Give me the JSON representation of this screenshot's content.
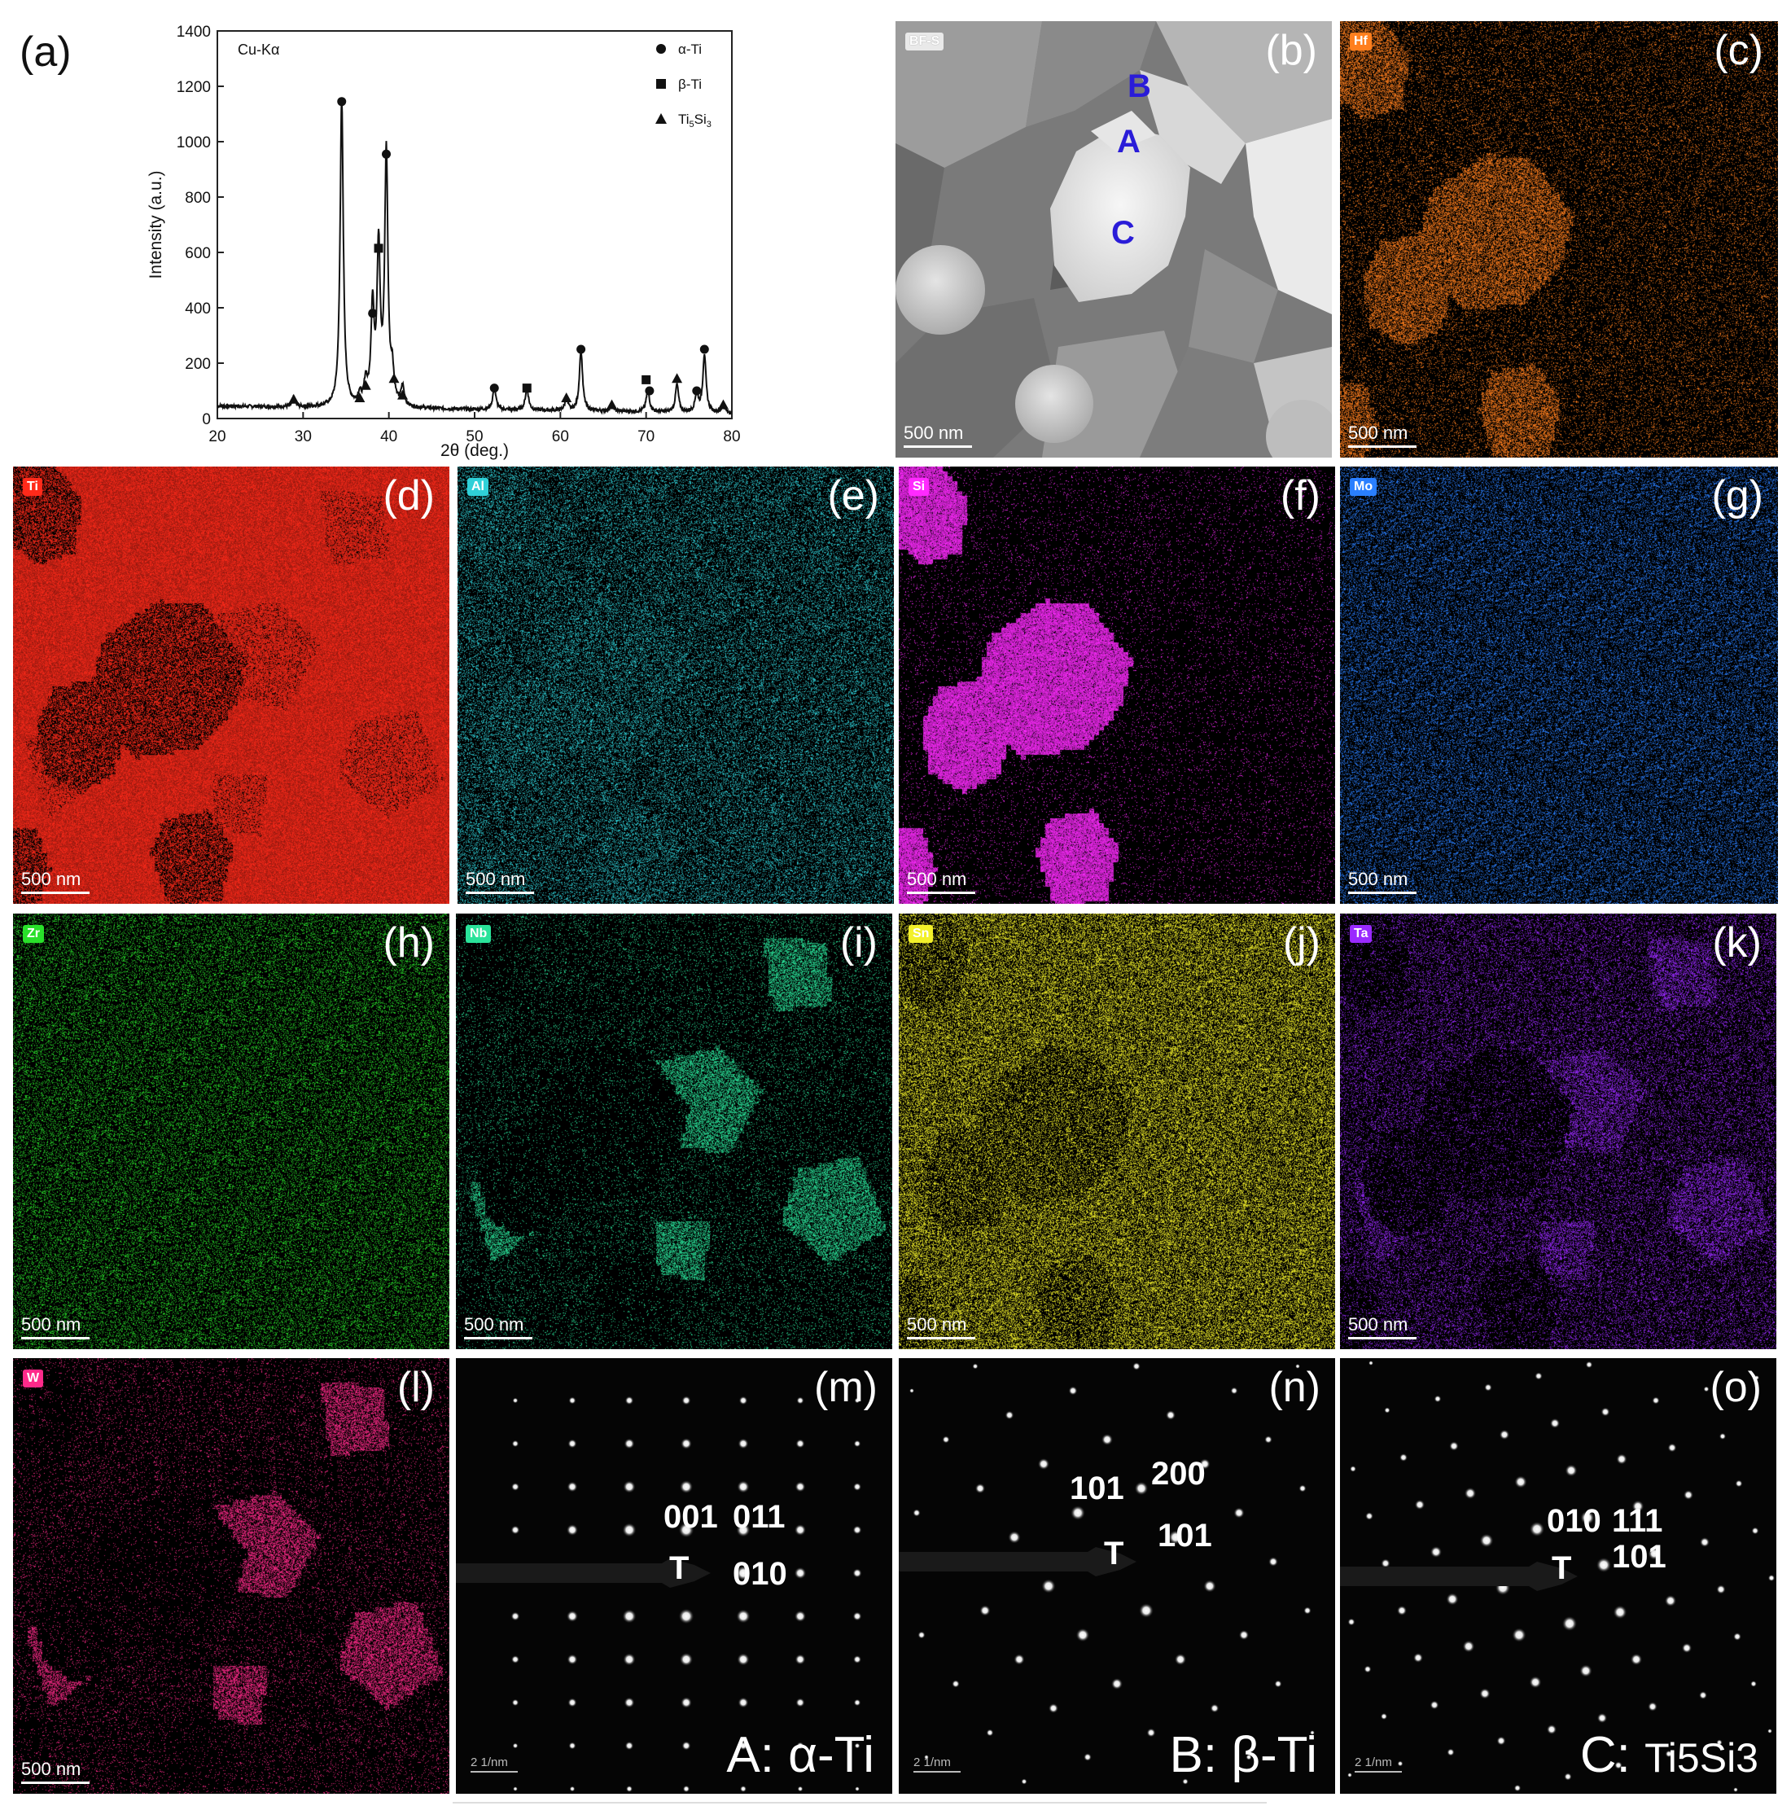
{
  "chart_data": {
    "type": "line",
    "panel_label": "(a)",
    "annotation": "Cu-Kα",
    "xlabel": "2θ (deg.)",
    "ylabel": "Intensity (a.u.)",
    "xlim": [
      20,
      80
    ],
    "ylim": [
      0,
      1400
    ],
    "xticks": [
      "20",
      "30",
      "40",
      "50",
      "60",
      "70",
      "80"
    ],
    "yticks": [
      "0",
      "200",
      "400",
      "600",
      "800",
      "1000",
      "1200",
      "1400"
    ],
    "grid": false,
    "legend_position": "top-right",
    "legend": [
      {
        "marker": "circle",
        "label": "α-Ti"
      },
      {
        "marker": "square",
        "label": "β-Ti"
      },
      {
        "marker": "triangle",
        "label": "Ti5Si3"
      }
    ],
    "peaks": [
      {
        "x": 28.9,
        "y": 28
      },
      {
        "x": 34.5,
        "y": 1120
      },
      {
        "x": 36.6,
        "y": 36
      },
      {
        "x": 37.3,
        "y": 80
      },
      {
        "x": 38.1,
        "y": 350
      },
      {
        "x": 38.8,
        "y": 560
      },
      {
        "x": 39.7,
        "y": 915
      },
      {
        "x": 40.4,
        "y": 110
      },
      {
        "x": 41.6,
        "y": 70
      },
      {
        "x": 52.3,
        "y": 80
      },
      {
        "x": 56.1,
        "y": 80
      },
      {
        "x": 60.7,
        "y": 40
      },
      {
        "x": 62.4,
        "y": 220
      },
      {
        "x": 66.0,
        "y": 28
      },
      {
        "x": 70.2,
        "y": 80
      },
      {
        "x": 73.6,
        "y": 100
      },
      {
        "x": 75.9,
        "y": 70
      },
      {
        "x": 76.8,
        "y": 210
      },
      {
        "x": 79.0,
        "y": 25
      }
    ],
    "markers": [
      {
        "x": 28.9,
        "y": 70,
        "type": "triangle"
      },
      {
        "x": 34.5,
        "y": 1145,
        "type": "circle"
      },
      {
        "x": 36.6,
        "y": 75,
        "type": "triangle"
      },
      {
        "x": 37.3,
        "y": 120,
        "type": "triangle"
      },
      {
        "x": 38.1,
        "y": 380,
        "type": "circle"
      },
      {
        "x": 38.8,
        "y": 615,
        "type": "square"
      },
      {
        "x": 39.7,
        "y": 955,
        "type": "circle"
      },
      {
        "x": 40.6,
        "y": 145,
        "type": "triangle"
      },
      {
        "x": 41.6,
        "y": 85,
        "type": "triangle"
      },
      {
        "x": 52.3,
        "y": 110,
        "type": "circle"
      },
      {
        "x": 56.1,
        "y": 110,
        "type": "square"
      },
      {
        "x": 60.7,
        "y": 75,
        "type": "triangle"
      },
      {
        "x": 62.4,
        "y": 250,
        "type": "circle"
      },
      {
        "x": 66.0,
        "y": 50,
        "type": "triangle"
      },
      {
        "x": 70.0,
        "y": 140,
        "type": "square"
      },
      {
        "x": 70.4,
        "y": 100,
        "type": "circle"
      },
      {
        "x": 73.6,
        "y": 145,
        "type": "triangle"
      },
      {
        "x": 75.9,
        "y": 100,
        "type": "circle"
      },
      {
        "x": 76.8,
        "y": 250,
        "type": "circle"
      },
      {
        "x": 79.0,
        "y": 50,
        "type": "triangle"
      }
    ]
  },
  "panel_b": {
    "label": "(b)",
    "badge": "BF-S",
    "scale": "500 nm",
    "regions": [
      "B",
      "A",
      "C"
    ]
  },
  "maps": [
    {
      "id": "c",
      "label": "(c)",
      "element": "Hf",
      "color": "#ff7f1e",
      "scale": "500 nm"
    },
    {
      "id": "d",
      "label": "(d)",
      "element": "Ti",
      "color": "#ff2a1a",
      "scale": "500 nm"
    },
    {
      "id": "e",
      "label": "(e)",
      "element": "Al",
      "color": "#2fd0d8",
      "scale": "500 nm"
    },
    {
      "id": "f",
      "label": "(f)",
      "element": "Si",
      "color": "#ff2aff",
      "scale": "500 nm"
    },
    {
      "id": "g",
      "label": "(g)",
      "element": "Mo",
      "color": "#2a7fff",
      "scale": "500 nm"
    },
    {
      "id": "h",
      "label": "(h)",
      "element": "Zr",
      "color": "#29e02a",
      "scale": "500 nm"
    },
    {
      "id": "i",
      "label": "(i)",
      "element": "Nb",
      "color": "#2ae39a",
      "scale": "500 nm"
    },
    {
      "id": "j",
      "label": "(j)",
      "element": "Sn",
      "color": "#f2f02a",
      "scale": "500 nm"
    },
    {
      "id": "k",
      "label": "(k)",
      "element": "Ta",
      "color": "#9a2aff",
      "scale": "500 nm"
    },
    {
      "id": "l",
      "label": "(l)",
      "element": "W",
      "color": "#ff2a8a",
      "scale": "500 nm"
    }
  ],
  "diffraction": [
    {
      "id": "m",
      "label": "(m)",
      "scale": "2 1/nm",
      "phase": "A: α-Ti",
      "indices": [
        "001",
        "011",
        "T",
        "010"
      ]
    },
    {
      "id": "n",
      "label": "(n)",
      "scale": "2 1/nm",
      "phase": "B: β-Ti",
      "indices": [
        "101",
        "200",
        "T",
        "101"
      ]
    },
    {
      "id": "o",
      "label": "(o)",
      "scale": "2 1/nm",
      "phase": "C: Ti5Si3",
      "indices": [
        "010",
        "111",
        "T",
        "101"
      ]
    }
  ]
}
